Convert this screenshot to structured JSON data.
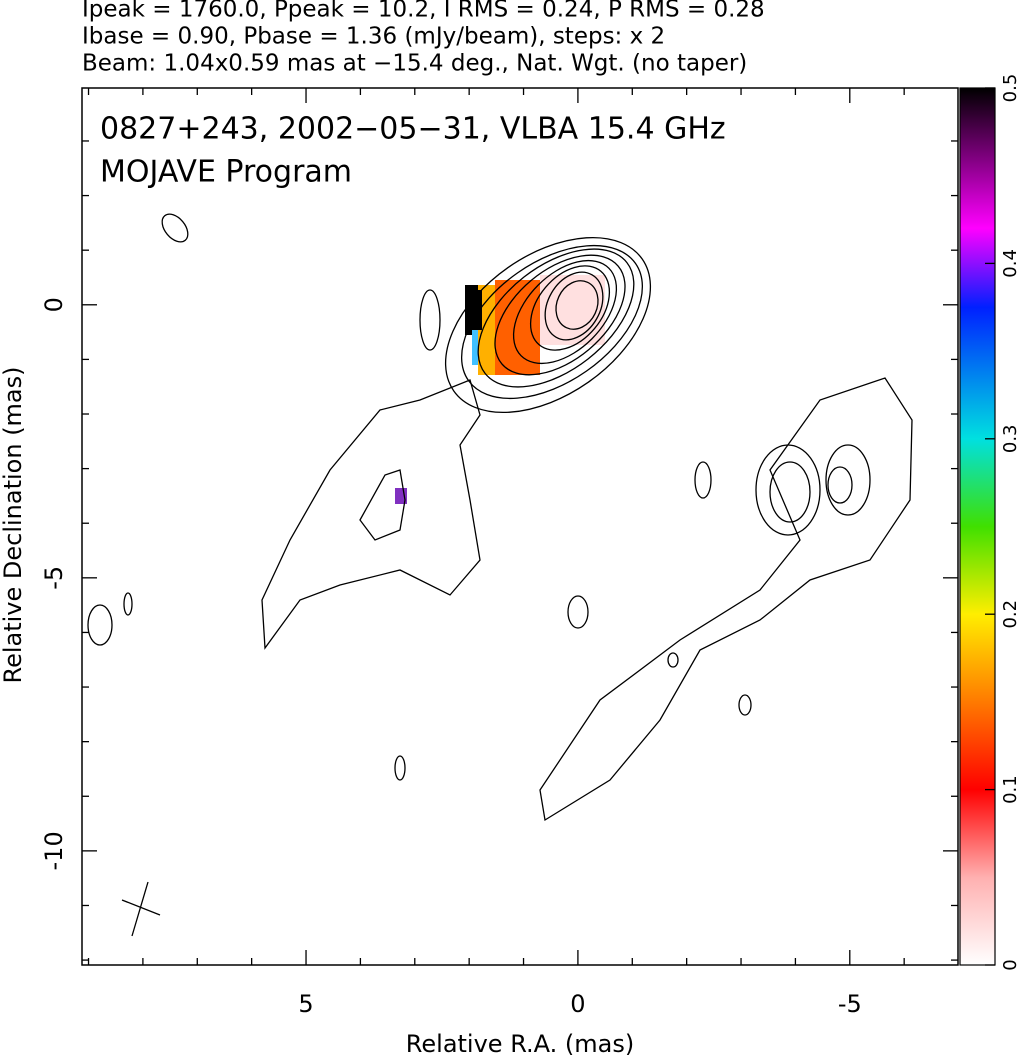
{
  "chart_data": {
    "type": "contour",
    "title_lines": [
      "Ipeak = 1760.0, Ppeak = 10.2, I RMS = 0.24, P RMS = 0.28",
      "Ibase = 0.90, Pbase = 1.36 (mJy/beam), steps: x 2",
      "Beam: 1.04x0.59 mas at −15.4 deg., Nat. Wgt. (no taper)"
    ],
    "annotations": [
      "0827+243, 2002−05−31, VLBA 15.4 GHz",
      "MOJAVE Program"
    ],
    "xlabel": "Relative R.A. (mas)",
    "ylabel": "Relative Declination (mas)",
    "xlim": [
      9.12,
      -6.99
    ],
    "ylim": [
      -12.09,
      3.97
    ],
    "xticks": [
      5,
      0,
      -5
    ],
    "yticks": [
      0,
      -5,
      -10
    ],
    "xminor": [
      9,
      8,
      7,
      6,
      4,
      3,
      2,
      1,
      -1,
      -2,
      -3,
      -4,
      -6
    ],
    "yminor": [
      3,
      2,
      1,
      -1,
      -2,
      -3,
      -4,
      -6,
      -7,
      -8,
      -9,
      -11,
      -12
    ],
    "colorbar": {
      "lim": [
        0,
        0.5
      ],
      "ticks": [
        0,
        0.1,
        0.2,
        0.3,
        0.4,
        0.5
      ]
    }
  }
}
